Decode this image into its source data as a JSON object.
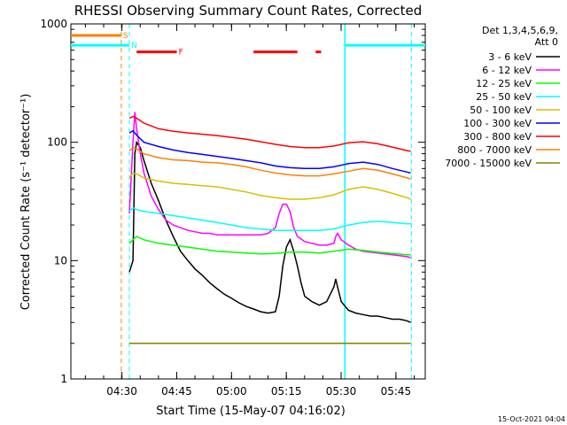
{
  "chart_data": {
    "type": "line",
    "title": "RHESSI Observing Summary Count Rates, Corrected",
    "xlabel": "Start Time (15-May-07 04:16:02)",
    "ylabel": "Corrected Count Rate (s⁻¹ detector⁻¹)",
    "yscale": "log",
    "ylim": [
      1,
      1000
    ],
    "xlim_minutes": [
      0,
      97
    ],
    "x_ticks": [
      {
        "label": "04:30",
        "minutes": 13.97
      },
      {
        "label": "04:45",
        "minutes": 28.97
      },
      {
        "label": "05:00",
        "minutes": 43.97
      },
      {
        "label": "05:15",
        "minutes": 58.97
      },
      {
        "label": "05:30",
        "minutes": 73.97
      },
      {
        "label": "05:45",
        "minutes": 88.97
      }
    ],
    "y_ticks": [
      {
        "label": "1",
        "value": 1
      },
      {
        "label": "10",
        "value": 10
      },
      {
        "label": "100",
        "value": 100
      },
      {
        "label": "1000",
        "value": 1000
      }
    ],
    "legend_header": [
      "Det 1,3,4,5,6,9,",
      "Att 0"
    ],
    "legend_position": "right",
    "series": [
      {
        "name": "3 - 6 keV",
        "color": "#000000",
        "x": [
          16,
          17,
          17.5,
          18,
          19,
          20,
          22,
          24,
          26,
          28,
          30,
          32,
          34,
          36,
          38,
          40,
          42,
          44,
          46,
          48,
          50,
          52,
          54,
          56,
          57,
          58,
          59,
          60,
          61,
          62,
          63,
          64,
          66,
          68,
          70,
          72,
          72.5,
          73,
          74,
          76,
          78,
          80,
          82,
          84,
          86,
          88,
          90,
          92,
          93
        ],
        "y": [
          8,
          10,
          80,
          100,
          90,
          70,
          45,
          32,
          22,
          16,
          12,
          10,
          8.5,
          7.5,
          6.5,
          5.8,
          5.2,
          4.8,
          4.4,
          4.1,
          3.9,
          3.7,
          3.6,
          3.7,
          5,
          9,
          13,
          15,
          12,
          9,
          6.5,
          5,
          4.5,
          4.2,
          4.5,
          6,
          7,
          6,
          4.5,
          3.8,
          3.6,
          3.5,
          3.4,
          3.4,
          3.3,
          3.2,
          3.2,
          3.1,
          3.0
        ]
      },
      {
        "name": "6 - 12 keV",
        "color": "#ff00ff",
        "x": [
          16,
          17,
          17.5,
          18,
          19,
          20,
          22,
          24,
          26,
          28,
          30,
          32,
          34,
          36,
          38,
          40,
          42,
          44,
          46,
          48,
          50,
          52,
          54,
          56,
          57,
          58,
          59,
          60,
          61,
          62,
          64,
          66,
          68,
          70,
          72,
          72.5,
          73,
          74,
          76,
          78,
          80,
          82,
          84,
          86,
          88,
          90,
          92,
          93
        ],
        "y": [
          25,
          100,
          180,
          130,
          80,
          55,
          35,
          27,
          22,
          20,
          19,
          18,
          17.5,
          17,
          17,
          16.5,
          16.5,
          16.5,
          16.5,
          16.5,
          16.5,
          16.5,
          17,
          19,
          25,
          30,
          30,
          26,
          19,
          16,
          14.5,
          14,
          13.5,
          13.5,
          14,
          16,
          17,
          15,
          13.5,
          12.5,
          12,
          11.8,
          11.6,
          11.4,
          11.2,
          11,
          10.8,
          10.6
        ]
      },
      {
        "name": "12 - 25 keV",
        "color": "#00ff00",
        "x": [
          16,
          17,
          18,
          20,
          24,
          28,
          32,
          36,
          40,
          44,
          48,
          52,
          56,
          60,
          64,
          68,
          72,
          76,
          80,
          84,
          88,
          92,
          93
        ],
        "y": [
          14,
          15,
          16,
          15,
          14,
          13.5,
          13,
          12.5,
          12,
          11.8,
          11.6,
          11.4,
          11.5,
          11.8,
          11.8,
          11.6,
          12,
          12.5,
          12.2,
          11.8,
          11.5,
          11.2,
          11.2
        ]
      },
      {
        "name": "25 - 50 keV",
        "color": "#00ffff",
        "x": [
          16,
          17,
          18,
          20,
          24,
          28,
          32,
          36,
          40,
          44,
          48,
          52,
          56,
          60,
          64,
          68,
          72,
          76,
          80,
          84,
          88,
          92,
          93
        ],
        "y": [
          26,
          28,
          27,
          26,
          25,
          24,
          23,
          22,
          21,
          20,
          19,
          18.5,
          18,
          18,
          18,
          18,
          18.5,
          20,
          21,
          21.5,
          21,
          20.5,
          20.5
        ]
      },
      {
        "name": "50 - 100 keV",
        "color": "#d4c000",
        "x": [
          16,
          17,
          18,
          20,
          24,
          28,
          32,
          36,
          40,
          44,
          48,
          52,
          56,
          60,
          64,
          68,
          72,
          76,
          80,
          84,
          88,
          92,
          93
        ],
        "y": [
          50,
          55,
          54,
          50,
          47,
          45,
          44,
          43,
          42,
          40,
          38,
          35.5,
          34,
          33,
          33,
          34,
          36,
          40,
          42,
          40,
          37,
          34,
          33
        ]
      },
      {
        "name": "100 - 300 keV",
        "color": "#0000ff",
        "x": [
          16,
          17,
          18,
          20,
          24,
          28,
          32,
          36,
          40,
          44,
          48,
          52,
          56,
          60,
          64,
          68,
          72,
          76,
          80,
          84,
          88,
          92,
          93
        ],
        "y": [
          120,
          125,
          115,
          100,
          92,
          86,
          82,
          79,
          76,
          73,
          70,
          67,
          63,
          61,
          60,
          60,
          62,
          66,
          68,
          65,
          60,
          56,
          55
        ]
      },
      {
        "name": "300 - 800 keV",
        "color": "#ff0000",
        "x": [
          16,
          17,
          18,
          20,
          24,
          28,
          32,
          36,
          40,
          44,
          48,
          52,
          56,
          60,
          64,
          68,
          72,
          76,
          80,
          84,
          88,
          92,
          93
        ],
        "y": [
          160,
          165,
          160,
          145,
          130,
          124,
          120,
          117,
          114,
          110,
          106,
          101,
          96,
          92,
          90,
          90,
          93,
          99,
          101,
          97,
          91,
          85,
          84
        ]
      },
      {
        "name": "800 - 7000 keV",
        "color": "#ff8000",
        "x": [
          16,
          17,
          18,
          20,
          24,
          28,
          32,
          36,
          40,
          44,
          48,
          52,
          56,
          60,
          64,
          68,
          72,
          76,
          80,
          84,
          88,
          92,
          93
        ],
        "y": [
          85,
          90,
          88,
          80,
          74,
          71,
          70,
          68,
          67,
          65,
          62,
          58,
          55,
          53,
          52,
          52,
          54,
          57,
          60,
          58,
          54,
          50,
          49
        ]
      },
      {
        "name": "7000 - 15000 keV",
        "color": "#808000",
        "x": [
          16,
          93
        ],
        "y": [
          2,
          2
        ]
      }
    ],
    "annotations": {
      "vertical_lines": [
        {
          "minutes": 13.8,
          "color": "#ff8000",
          "style": "dashed"
        },
        {
          "minutes": 16.0,
          "color": "#00ffff",
          "style": "dashed"
        },
        {
          "minutes": 75.0,
          "color": "#00ffff",
          "style": "solid"
        },
        {
          "minutes": 93.2,
          "color": "#00ffff",
          "style": "dashed"
        }
      ],
      "flags": [
        {
          "label": "S",
          "color": "#ff8000",
          "segments_minutes": [
            [
              0,
              13.8
            ]
          ],
          "level": 800
        },
        {
          "label": "N",
          "color": "#00ffff",
          "segments_minutes": [
            [
              0,
              16
            ],
            [
              75,
              97
            ]
          ],
          "level": 660
        },
        {
          "label": "F",
          "color": "#ff0000",
          "segments_minutes": [
            [
              18,
              29
            ],
            [
              50,
              62
            ],
            [
              67,
              68.5
            ]
          ],
          "level": 580
        }
      ]
    }
  },
  "footer": {
    "timestamp": "15-Oct-2021 04:04"
  }
}
